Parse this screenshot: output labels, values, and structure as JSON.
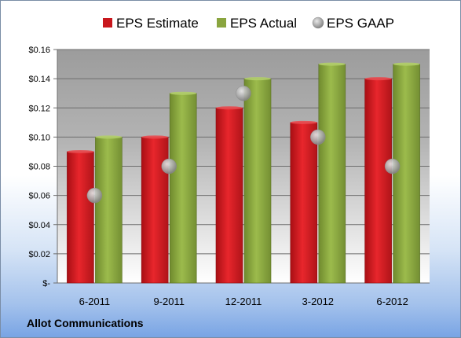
{
  "company_name": "Allot Communications",
  "colors": {
    "estimate": "#c8171d",
    "actual": "#8aa53f",
    "gaap": "#a9a9a9",
    "plot_top": "#9c9c9c",
    "plot_bottom": "#ffffff"
  },
  "chart_data": {
    "type": "bar",
    "categories": [
      "6-2011",
      "9-2011",
      "12-2011",
      "3-2012",
      "6-2012"
    ],
    "series": [
      {
        "name": "EPS Estimate",
        "type": "bar",
        "values": [
          0.09,
          0.1,
          0.12,
          0.11,
          0.14
        ]
      },
      {
        "name": "EPS Actual",
        "type": "bar",
        "values": [
          0.1,
          0.13,
          0.14,
          0.15,
          0.15
        ]
      },
      {
        "name": "EPS GAAP",
        "type": "scatter",
        "values": [
          0.06,
          0.08,
          0.13,
          0.1,
          0.08
        ]
      }
    ],
    "ylim": [
      0,
      0.16
    ],
    "yticks": [
      0,
      0.02,
      0.04,
      0.06,
      0.08,
      0.1,
      0.12,
      0.14,
      0.16
    ],
    "ytick_labels": [
      "$-",
      "$0.02",
      "$0.04",
      "$0.06",
      "$0.08",
      "$0.10",
      "$0.12",
      "$0.14",
      "$0.16"
    ],
    "grid": true,
    "legend_position": "top"
  }
}
